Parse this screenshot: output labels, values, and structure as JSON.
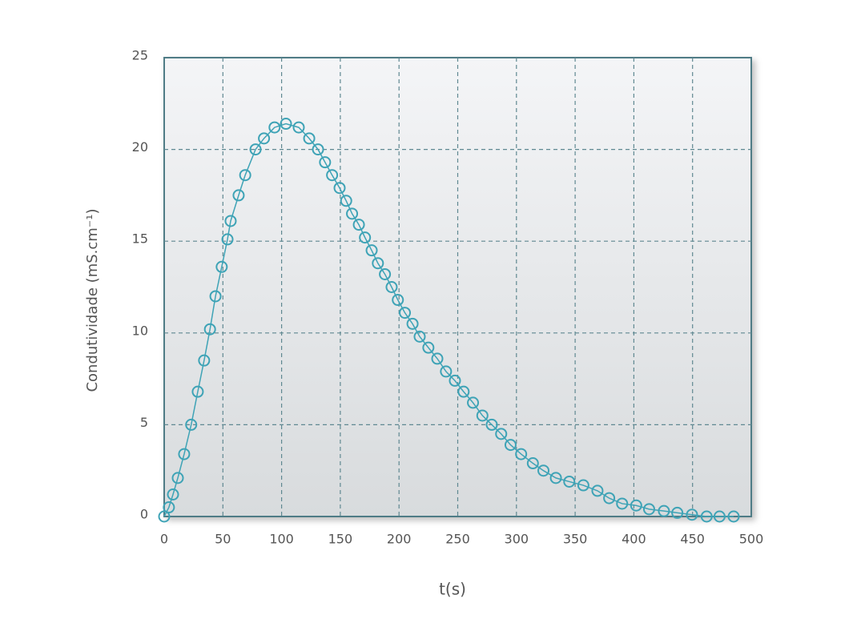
{
  "chart_data": {
    "type": "line",
    "xlabel": "t(s)",
    "ylabel": "Condutividade (mS.cm⁻¹)",
    "x": [
      0,
      4,
      7.5,
      11.6,
      17,
      23,
      28.6,
      34,
      39,
      43.7,
      49,
      53.9,
      56.6,
      63.4,
      69,
      77.8,
      85,
      94,
      103.7,
      114.6,
      123.5,
      131,
      137,
      143,
      149.4,
      155,
      160,
      165.8,
      171,
      176.7,
      182,
      188,
      193.7,
      199,
      205,
      211.5,
      217.6,
      225,
      232.6,
      240,
      247.6,
      255,
      263,
      271,
      279,
      287,
      295,
      304,
      314,
      323,
      333.6,
      345,
      357,
      369,
      379,
      390,
      402,
      413,
      425.6,
      437,
      449.5,
      462,
      473,
      485
    ],
    "values": [
      0,
      0.5,
      1.2,
      2.1,
      3.4,
      5.0,
      6.8,
      8.5,
      10.2,
      12.0,
      13.6,
      15.1,
      16.1,
      17.5,
      18.6,
      20.0,
      20.6,
      21.2,
      21.4,
      21.2,
      20.6,
      20.0,
      19.3,
      18.6,
      17.9,
      17.2,
      16.5,
      15.9,
      15.2,
      14.5,
      13.8,
      13.2,
      12.5,
      11.8,
      11.1,
      10.5,
      9.8,
      9.2,
      8.6,
      7.9,
      7.4,
      6.8,
      6.2,
      5.5,
      5.0,
      4.5,
      3.9,
      3.4,
      2.9,
      2.5,
      2.1,
      1.9,
      1.7,
      1.4,
      1.0,
      0.7,
      0.6,
      0.4,
      0.3,
      0.2,
      0.1,
      0,
      0,
      0
    ],
    "color": "#3ea3b6",
    "markers": true,
    "xlim": [
      0,
      500
    ],
    "xticks": [
      0,
      50,
      100,
      150,
      200,
      250,
      300,
      350,
      400,
      450,
      500
    ],
    "ylim": [
      0,
      25
    ],
    "yticks": [
      0,
      5,
      10,
      15,
      20,
      25
    ],
    "grid": true
  }
}
